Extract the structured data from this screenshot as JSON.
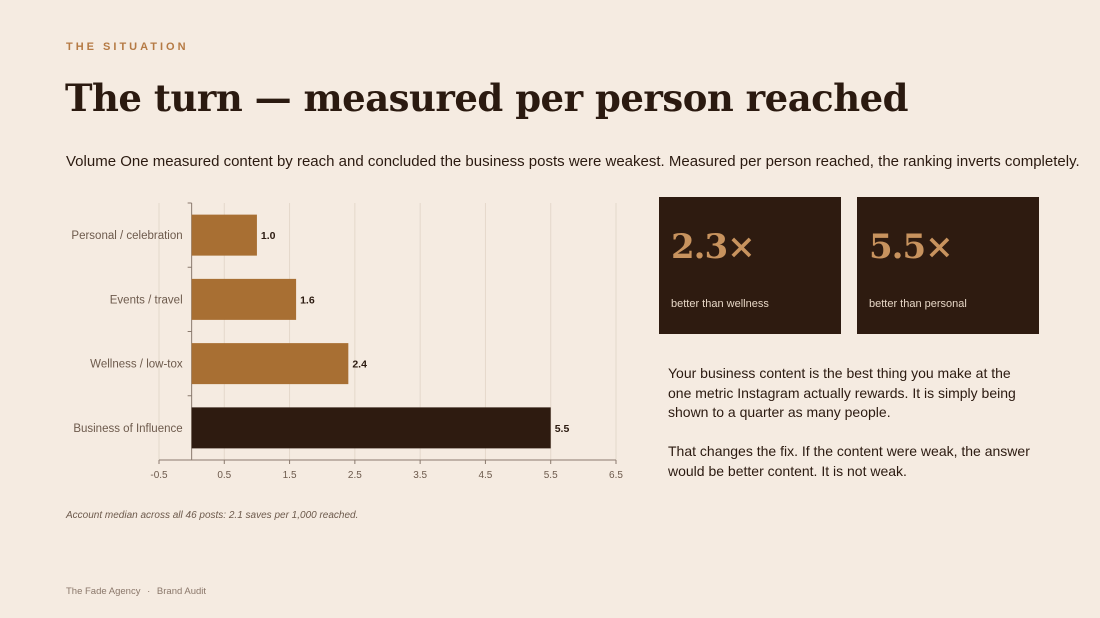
{
  "header": {
    "eyebrow": "THE SITUATION",
    "title": "The turn — measured per person reached",
    "subtitle": "Volume One measured content by reach and concluded the business posts were weakest. Measured per person reached, the ranking inverts completely."
  },
  "chart_data": {
    "type": "bar",
    "orientation": "horizontal",
    "categories": [
      "Personal / celebration",
      "Events / travel",
      "Wellness / low-tox",
      "Business of Influence"
    ],
    "values": [
      1.0,
      1.6,
      2.4,
      5.5
    ],
    "value_labels": [
      "1.0",
      "1.6",
      "2.4",
      "5.5"
    ],
    "xlim": [
      -0.5,
      6.5
    ],
    "xticks": [
      "-0.5",
      "0.5",
      "1.5",
      "2.5",
      "3.5",
      "4.5",
      "5.5",
      "6.5"
    ],
    "bar_colors": [
      "#a86f33",
      "#a86f33",
      "#a86f33",
      "#2e1b10"
    ],
    "grid": "vertical",
    "title": "",
    "xlabel": "",
    "ylabel": ""
  },
  "stats": [
    {
      "value": "2.3×",
      "label": "better than wellness"
    },
    {
      "value": "5.5×",
      "label": "better than personal"
    }
  ],
  "body": {
    "paragraph1": "Your business content is the best thing you make at the one metric Instagram actually rewards. It is simply being shown to a quarter as many people.",
    "paragraph2": "That changes the fix. If the content were weak, the answer would be better content. It is not weak."
  },
  "note": "Account median across all 46 posts: 2.1 saves per 1,000 reached.",
  "footer": {
    "agency": "The Fade Agency",
    "separator": "·",
    "report": "Brand Audit"
  },
  "colors": {
    "background": "#f5ebe1",
    "accent": "#a86f33",
    "dark": "#2e1b10",
    "stat_value": "#c8935e"
  }
}
